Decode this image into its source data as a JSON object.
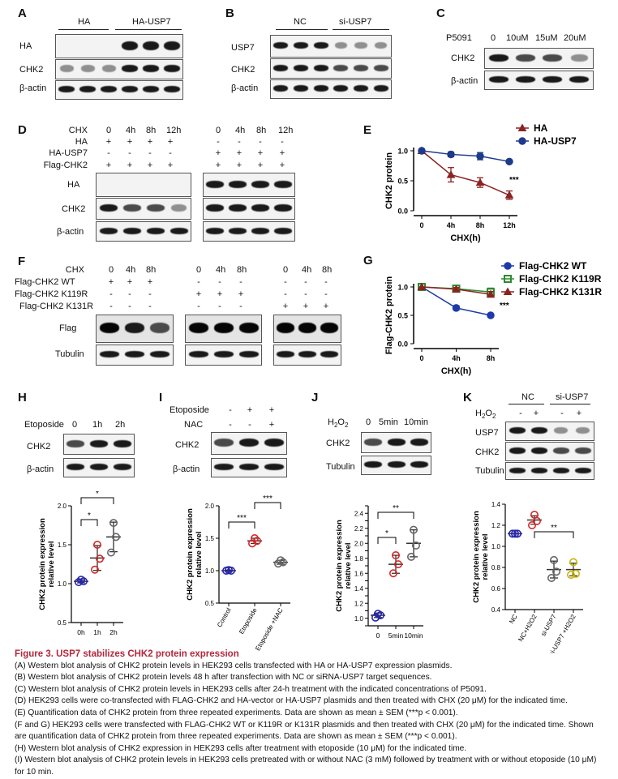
{
  "panels": {
    "A": {
      "label": "A",
      "groups": [
        "HA",
        "HA-USP7"
      ],
      "rows": [
        "HA",
        "CHK2",
        "β-actin"
      ]
    },
    "B": {
      "label": "B",
      "groups": [
        "NC",
        "si-USP7"
      ],
      "rows": [
        "USP7",
        "CHK2",
        "β-actin"
      ]
    },
    "C": {
      "label": "C",
      "treatment": "P5091",
      "doses": [
        "0",
        "10uM",
        "15uM",
        "20uM"
      ],
      "rows": [
        "CHK2",
        "β-actin"
      ]
    },
    "D": {
      "label": "D",
      "conditions": [
        "CHX",
        "HA",
        "HA-USP7",
        "Flag-CHK2"
      ],
      "chx_times": [
        "0",
        "4h",
        "8h",
        "12h"
      ],
      "signs_HA": [
        "+",
        "+",
        "+",
        "+",
        "-",
        "-",
        "-",
        "-"
      ],
      "signs_HAUSP7": [
        "-",
        "-",
        "-",
        "-",
        "+",
        "+",
        "+",
        "+"
      ],
      "signs_Flag": [
        "+",
        "+",
        "+",
        "+",
        "+",
        "+",
        "+",
        "+"
      ],
      "rows": [
        "HA",
        "CHK2",
        "β-actin"
      ]
    },
    "E": {
      "label": "E",
      "significance": "***"
    },
    "F": {
      "label": "F",
      "conditions": [
        "CHX",
        "Flag-CHK2 WT",
        "Flag-CHK2 K119R",
        "Flag-CHK2 K131R"
      ],
      "chx_times": [
        "0",
        "4h",
        "8h"
      ],
      "signs_WT": [
        "+",
        "+",
        "+",
        "-",
        "-",
        "-",
        "-",
        "-",
        "-"
      ],
      "signs_K119R": [
        "-",
        "-",
        "-",
        "+",
        "+",
        "+",
        "-",
        "-",
        "-"
      ],
      "signs_K131R": [
        "-",
        "-",
        "-",
        "-",
        "-",
        "-",
        "+",
        "+",
        "+"
      ],
      "rows": [
        "Flag",
        "Tubulin"
      ]
    },
    "G": {
      "label": "G",
      "significance": "***"
    },
    "H": {
      "label": "H",
      "treatment": "Etoposide",
      "doses": [
        "0",
        "1h",
        "2h"
      ],
      "rows": [
        "CHK2",
        "β-actin"
      ]
    },
    "I": {
      "label": "I",
      "treatments": [
        "Etoposide",
        "NAC"
      ],
      "signs_eto": [
        "-",
        "+",
        "+"
      ],
      "signs_nac": [
        "-",
        "-",
        "+"
      ],
      "rows": [
        "CHK2",
        "β-actin"
      ]
    },
    "J": {
      "label": "J",
      "treatment": "H2O2",
      "doses": [
        "0",
        "5min",
        "10min"
      ],
      "rows": [
        "CHK2",
        "Tubulin"
      ]
    },
    "K": {
      "label": "K",
      "groups": [
        "NC",
        "si-USP7"
      ],
      "treatment": "H2O2",
      "signs": [
        "-",
        "+",
        "-",
        "+"
      ],
      "rows": [
        "USP7",
        "CHK2",
        "Tubulin"
      ]
    }
  },
  "chart_data": [
    {
      "id": "E",
      "type": "line",
      "ylabel": "CHK2 protein",
      "xlabel": "CHX(h)",
      "categories": [
        "0",
        "4h",
        "8h",
        "12h"
      ],
      "ylim": [
        0.0,
        1.0
      ],
      "yticks": [
        "0.0",
        "0.5",
        "1.0"
      ],
      "legend_position": "top-right",
      "series": [
        {
          "name": "HA",
          "values": [
            1.0,
            0.6,
            0.47,
            0.26
          ],
          "errors": [
            0.0,
            0.12,
            0.08,
            0.07
          ],
          "color": "#8b2323",
          "marker": "triangle"
        },
        {
          "name": "HA-USP7",
          "values": [
            1.0,
            0.94,
            0.91,
            0.82
          ],
          "errors": [
            0.0,
            0.04,
            0.06,
            0.02
          ],
          "color": "#1e3a8a",
          "marker": "circle"
        }
      ],
      "annotation": "***"
    },
    {
      "id": "G",
      "type": "line",
      "ylabel": "Flag-CHK2 protein",
      "xlabel": "CHX(h)",
      "categories": [
        "0",
        "4h",
        "8h"
      ],
      "ylim": [
        0.0,
        1.0
      ],
      "yticks": [
        "0.0",
        "0.5",
        "1.0"
      ],
      "legend_position": "top-right",
      "series": [
        {
          "name": "Flag-CHK2 WT",
          "values": [
            1.0,
            0.63,
            0.5
          ],
          "errors": [
            0.0,
            0.04,
            0.03
          ],
          "color": "#1e3aa8",
          "marker": "circle"
        },
        {
          "name": "Flag-CHK2 K119R",
          "values": [
            1.0,
            0.97,
            0.91
          ],
          "errors": [
            0.0,
            0.03,
            0.07
          ],
          "color": "#2e8b2e",
          "marker": "square"
        },
        {
          "name": "Flag-CHK2 K131R",
          "values": [
            1.0,
            0.96,
            0.87
          ],
          "errors": [
            0.0,
            0.03,
            0.05
          ],
          "color": "#8b2323",
          "marker": "triangle"
        }
      ],
      "annotation": "***"
    },
    {
      "id": "H",
      "type": "scatter",
      "ylabel": "CHK2 protein expression relative level",
      "categories": [
        "0h",
        "1h",
        "2h"
      ],
      "ylim": [
        0.5,
        2.0
      ],
      "yticks": [
        "0.5",
        "1.0",
        "1.5",
        "2.0"
      ],
      "series": [
        {
          "name": "0h",
          "points": [
            1.02,
            1.03,
            1.05
          ],
          "mean": 1.03,
          "sem": 0.02,
          "color": "#2424b0"
        },
        {
          "name": "1h",
          "points": [
            1.18,
            1.32,
            1.5
          ],
          "mean": 1.33,
          "sem": 0.16,
          "color": "#d62828"
        },
        {
          "name": "2h",
          "points": [
            1.4,
            1.6,
            1.78
          ],
          "mean": 1.6,
          "sem": 0.19,
          "color": "#666666"
        }
      ],
      "comparisons": [
        {
          "from": 0,
          "to": 1,
          "label": "*"
        },
        {
          "from": 0,
          "to": 2,
          "label": "*"
        }
      ]
    },
    {
      "id": "I",
      "type": "scatter",
      "ylabel": "CHK2 protein expression relative level",
      "categories": [
        "Control",
        "Etoposide",
        "Etoposide +NAC"
      ],
      "ylim": [
        0.5,
        2.0
      ],
      "yticks": [
        "0.5",
        "1.0",
        "1.5",
        "2.0"
      ],
      "series": [
        {
          "name": "Control",
          "points": [
            1.0,
            1.0,
            1.01
          ],
          "mean": 1.0,
          "sem": 0.01,
          "color": "#2424b0"
        },
        {
          "name": "Etoposide",
          "points": [
            1.42,
            1.46,
            1.5
          ],
          "mean": 1.46,
          "sem": 0.04,
          "color": "#d62828"
        },
        {
          "name": "Etoposide +NAC",
          "points": [
            1.11,
            1.13,
            1.16
          ],
          "mean": 1.13,
          "sem": 0.03,
          "color": "#666666"
        }
      ],
      "comparisons": [
        {
          "from": 0,
          "to": 1,
          "label": "***"
        },
        {
          "from": 1,
          "to": 2,
          "label": "***"
        }
      ]
    },
    {
      "id": "J",
      "type": "scatter",
      "ylabel": "CHK2 protein expression relative level",
      "categories": [
        "0",
        "5min",
        "10min"
      ],
      "ylim": [
        0.9,
        2.5
      ],
      "yticks": [
        "0.9",
        "1.0",
        "1.1",
        "1.2",
        "1.3",
        "1.4",
        "1.5",
        "1.6",
        "1.7",
        "1.8",
        "1.9",
        "2.0",
        "2.1",
        "2.2",
        "2.3",
        "2.4",
        "2.5"
      ],
      "series": [
        {
          "name": "0",
          "points": [
            1.01,
            1.04,
            1.06
          ],
          "mean": 1.04,
          "sem": 0.03,
          "color": "#2424b0"
        },
        {
          "name": "5min",
          "points": [
            1.6,
            1.72,
            1.84
          ],
          "mean": 1.72,
          "sem": 0.12,
          "color": "#d62828"
        },
        {
          "name": "10min",
          "points": [
            1.82,
            1.97,
            2.18
          ],
          "mean": 2.0,
          "sem": 0.18,
          "color": "#666666"
        }
      ],
      "comparisons": [
        {
          "from": 0,
          "to": 1,
          "label": "*"
        },
        {
          "from": 0,
          "to": 2,
          "label": "**"
        }
      ]
    },
    {
      "id": "K",
      "type": "scatter",
      "ylabel": "CHK2 protein expression relative level",
      "categories": [
        "NC",
        "NC+H2O2",
        "si-USP7",
        "si-USP7 +H2O2"
      ],
      "ylim": [
        0.4,
        1.4
      ],
      "yticks": [
        "0.4",
        "0.6",
        "0.8",
        "1.0",
        "1.2",
        "1.4"
      ],
      "series": [
        {
          "name": "NC",
          "points": [
            1.12,
            1.12,
            1.12
          ],
          "mean": 1.12,
          "sem": 0.0,
          "color": "#2424b0"
        },
        {
          "name": "NC+H2O2",
          "points": [
            1.2,
            1.24,
            1.3
          ],
          "mean": 1.25,
          "sem": 0.04,
          "color": "#d62828"
        },
        {
          "name": "si-USP7",
          "points": [
            0.7,
            0.76,
            0.87
          ],
          "mean": 0.78,
          "sem": 0.08,
          "color": "#666666"
        },
        {
          "name": "si-USP7 +H2O2",
          "points": [
            0.73,
            0.74,
            0.85
          ],
          "mean": 0.78,
          "sem": 0.06,
          "color": "#c8b400"
        }
      ],
      "comparisons": [
        {
          "from": 1,
          "to": 3,
          "label": "**"
        }
      ]
    }
  ],
  "caption": {
    "title": "Figure 3.  USP7 stabilizes CHK2 protein expression",
    "lines": [
      "(A) Western blot analysis of CHK2 protein levels in HEK293 cells transfected with HA or HA-USP7 expression plasmids.",
      "(B) Western blot analysis of CHK2 protein levels 48 h after transfection with NC or siRNA-USP7 target sequences.",
      "(C) Western blot analysis of CHK2 protein levels in HEK293 cells after 24-h treatment with the indicated concentrations of P5091.",
      "(D) HEK293 cells were co-transfected with FLAG-CHK2 and HA-vector or HA-USP7 plasmids and then treated with CHX (20 μM) for the indicated time.",
      "(E) Quantification data of CHK2 protein from three repeated experiments. Data are shown as mean ± SEM (***p < 0.001).",
      "(F and G) HEK293 cells were transfected with FLAG-CHK2 WT or K119R or K131R plasmids and then treated with CHX (20 μM) for the indicated time. Shown are quantification data of CHK2 protein from three repeated experiments. Data are shown as mean ± SEM (***p < 0.001).",
      "(H) Western blot analysis of CHK2 expression in HEK293 cells after treatment with etoposide (10 μM) for the indicated time.",
      "(I) Western blot analysis of CHK2 protein levels in HEK293 cells pretreated with or without NAC (3 mM) followed by treatment with or without etoposide (10 μM) for 10 min."
    ]
  }
}
